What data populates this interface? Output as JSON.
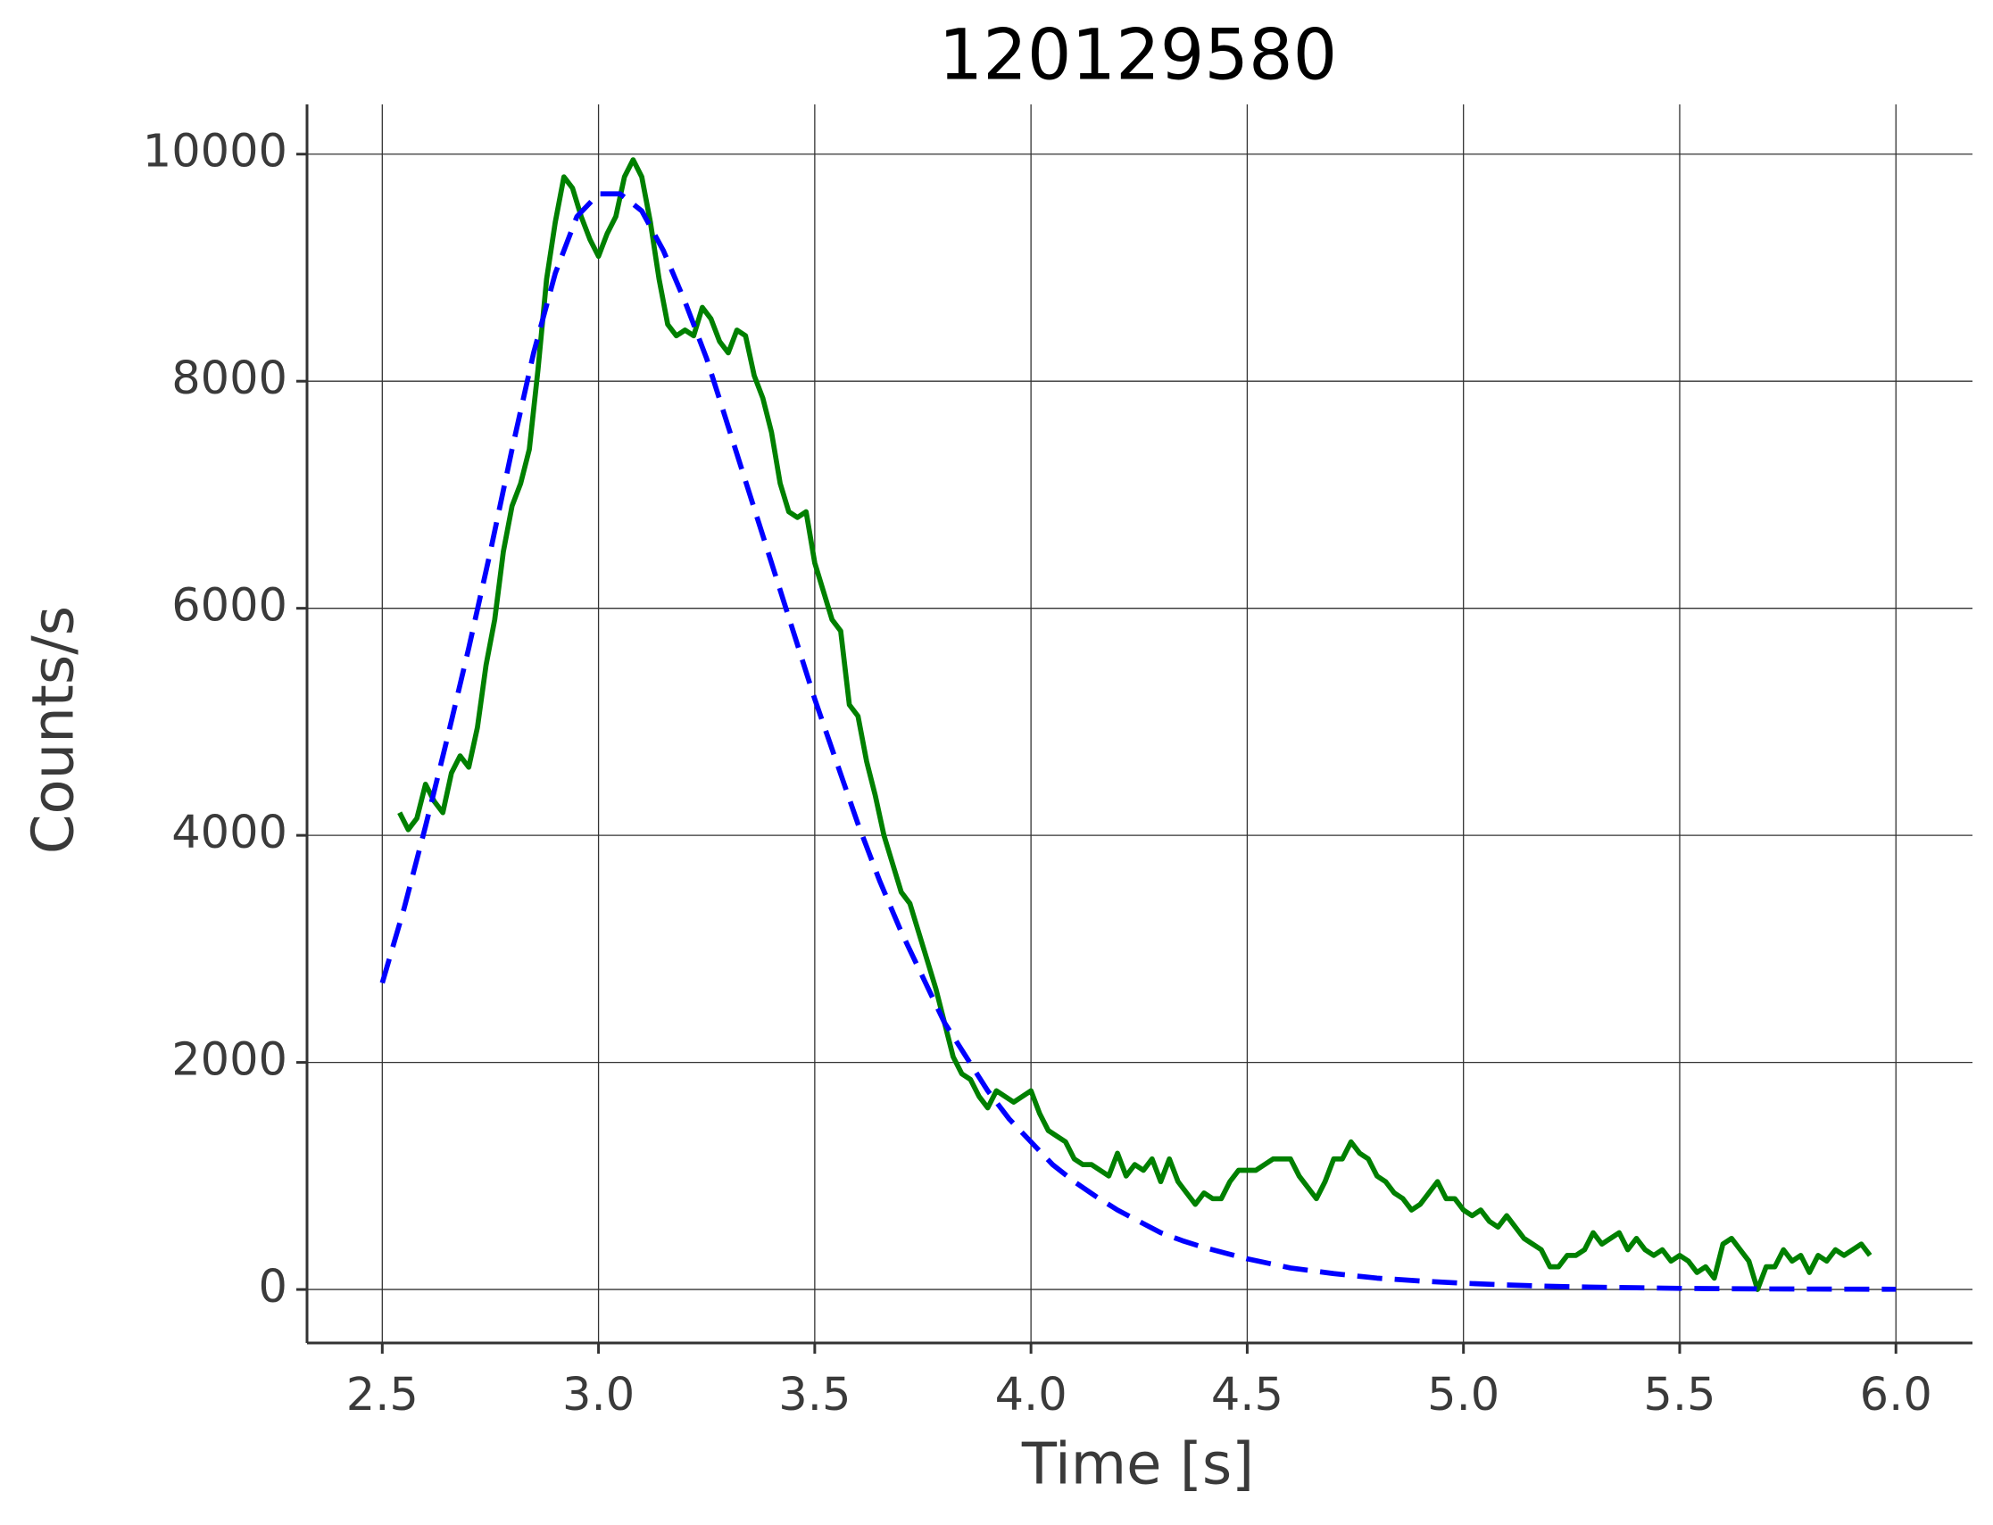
{
  "chart_data": {
    "type": "line",
    "title": "120129580",
    "xlabel": "Time [s]",
    "ylabel": "Counts/s",
    "xlim": [
      2.326,
      6.177
    ],
    "ylim": [
      -471,
      10438
    ],
    "xticks": [
      2.5,
      {
        "value": 3,
        "label": "3.0"
      },
      3.5,
      {
        "value": 4,
        "label": "4.0"
      },
      4.5,
      {
        "value": 5,
        "label": "5.0"
      },
      5.5,
      {
        "value": 6,
        "label": "6.0"
      }
    ],
    "yticks": [
      0,
      2000,
      4000,
      6000,
      8000,
      10000
    ],
    "grid": true,
    "series": [
      {
        "color": "#008000",
        "dash": false,
        "x": [
          2.54,
          2.56,
          2.58,
          2.6,
          2.62,
          2.64,
          2.66,
          2.68,
          2.7,
          2.72,
          2.74,
          2.76,
          2.78,
          2.8,
          2.82,
          2.84,
          2.86,
          2.88,
          2.9,
          2.92,
          2.94,
          2.96,
          2.98,
          3.0,
          3.02,
          3.04,
          3.06,
          3.08,
          3.1,
          3.12,
          3.14,
          3.16,
          3.18,
          3.2,
          3.22,
          3.24,
          3.26,
          3.28,
          3.3,
          3.32,
          3.34,
          3.36,
          3.38,
          3.4,
          3.42,
          3.44,
          3.46,
          3.48,
          3.5,
          3.52,
          3.54,
          3.56,
          3.58,
          3.6,
          3.62,
          3.64,
          3.66,
          3.68,
          3.7,
          3.72,
          3.74,
          3.76,
          3.78,
          3.8,
          3.82,
          3.84,
          3.86,
          3.88,
          3.9,
          3.92,
          3.94,
          3.96,
          3.98,
          4.0,
          4.02,
          4.04,
          4.06,
          4.08,
          4.1,
          4.12,
          4.14,
          4.16,
          4.18,
          4.2,
          4.22,
          4.24,
          4.26,
          4.28,
          4.3,
          4.32,
          4.34,
          4.36,
          4.38,
          4.4,
          4.42,
          4.44,
          4.46,
          4.48,
          4.5,
          4.52,
          4.54,
          4.56,
          4.58,
          4.6,
          4.62,
          4.64,
          4.66,
          4.68,
          4.7,
          4.72,
          4.74,
          4.76,
          4.78,
          4.8,
          4.82,
          4.84,
          4.86,
          4.88,
          4.9,
          4.92,
          4.94,
          4.96,
          4.98,
          5.0,
          5.02,
          5.04,
          5.06,
          5.08,
          5.1,
          5.12,
          5.14,
          5.16,
          5.18,
          5.2,
          5.22,
          5.24,
          5.26,
          5.28,
          5.3,
          5.32,
          5.34,
          5.36,
          5.38,
          5.4,
          5.42,
          5.44,
          5.46,
          5.48,
          5.5,
          5.52,
          5.54,
          5.56,
          5.58,
          5.6,
          5.62,
          5.64,
          5.66,
          5.68,
          5.7,
          5.72,
          5.74,
          5.76,
          5.78,
          5.8,
          5.82,
          5.84,
          5.86,
          5.88,
          5.9,
          5.92,
          5.94
        ],
        "values": [
          4200,
          4050,
          4150,
          4450,
          4300,
          4200,
          4550,
          4700,
          4600,
          4950,
          5500,
          5900,
          6500,
          6900,
          7100,
          7400,
          8100,
          8900,
          9400,
          9800,
          9700,
          9450,
          9250,
          9100,
          9300,
          9450,
          9800,
          9950,
          9800,
          9400,
          8900,
          8500,
          8400,
          8450,
          8400,
          8650,
          8550,
          8350,
          8250,
          8450,
          8400,
          8050,
          7850,
          7550,
          7100,
          6850,
          6800,
          6850,
          6400,
          6150,
          5900,
          5800,
          5150,
          5050,
          4650,
          4350,
          4000,
          3750,
          3500,
          3400,
          3150,
          2900,
          2650,
          2350,
          2050,
          1900,
          1850,
          1700,
          1600,
          1750,
          1700,
          1650,
          1700,
          1750,
          1550,
          1400,
          1350,
          1300,
          1150,
          1100,
          1100,
          1050,
          1000,
          1200,
          1000,
          1100,
          1050,
          1150,
          950,
          1150,
          950,
          850,
          750,
          850,
          800,
          800,
          950,
          1050,
          1050,
          1050,
          1100,
          1150,
          1150,
          1150,
          1000,
          900,
          800,
          950,
          1150,
          1150,
          1300,
          1200,
          1150,
          1000,
          950,
          850,
          800,
          700,
          750,
          850,
          950,
          800,
          800,
          700,
          650,
          700,
          600,
          550,
          650,
          550,
          450,
          400,
          350,
          200,
          200,
          300,
          300,
          350,
          500,
          400,
          450,
          500,
          350,
          450,
          350,
          300,
          350,
          250,
          300,
          250,
          150,
          200,
          100,
          400,
          450,
          350,
          250,
          0,
          200,
          200,
          350,
          250,
          300,
          150,
          300,
          250,
          350,
          300,
          350,
          400,
          300
        ]
      },
      {
        "color": "#0000ff",
        "dash": true,
        "x": [
          2.5,
          2.55,
          2.6,
          2.65,
          2.7,
          2.75,
          2.8,
          2.85,
          2.9,
          2.95,
          3.0,
          3.05,
          3.1,
          3.15,
          3.2,
          3.25,
          3.3,
          3.35,
          3.4,
          3.45,
          3.5,
          3.55,
          3.6,
          3.65,
          3.7,
          3.75,
          3.8,
          3.85,
          3.9,
          3.95,
          4.0,
          4.05,
          4.1,
          4.15,
          4.2,
          4.25,
          4.3,
          4.35,
          4.4,
          4.45,
          4.5,
          4.6,
          4.7,
          4.8,
          4.9,
          5.0,
          5.1,
          5.2,
          5.3,
          5.4,
          5.5,
          5.6,
          5.7,
          5.8,
          5.9,
          6.0
        ],
        "values": [
          2700,
          3350,
          4080,
          4850,
          5650,
          6500,
          7400,
          8250,
          8950,
          9450,
          9650,
          9650,
          9500,
          9150,
          8700,
          8200,
          7600,
          7000,
          6400,
          5800,
          5200,
          4650,
          4100,
          3600,
          3150,
          2750,
          2350,
          2050,
          1750,
          1500,
          1300,
          1100,
          950,
          820,
          700,
          600,
          500,
          430,
          370,
          320,
          270,
          190,
          140,
          100,
          75,
          55,
          40,
          28,
          20,
          15,
          10,
          7,
          5,
          4,
          3,
          2
        ]
      }
    ]
  }
}
